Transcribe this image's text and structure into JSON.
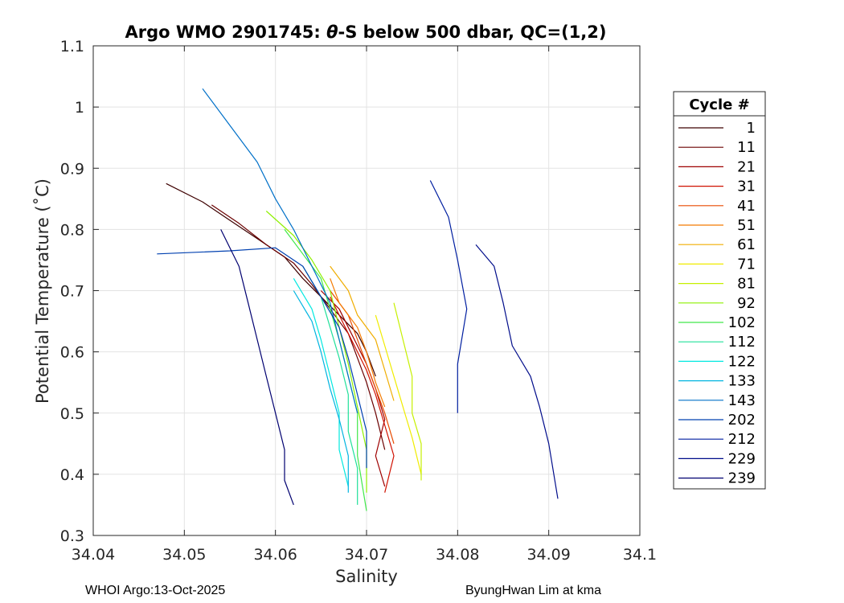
{
  "chart_data": {
    "type": "line",
    "title_parts": {
      "prefix": "Argo WMO 2901745: ",
      "theta": "θ",
      "suffix": "-S below 500 dbar,  QC=(1,2)"
    },
    "xlabel": "Salinity",
    "ylabel": "Potential Temperature (˚C)",
    "xlim": [
      34.04,
      34.1
    ],
    "ylim": [
      0.3,
      1.1
    ],
    "xticks": [
      34.04,
      34.05,
      34.06,
      34.07,
      34.08,
      34.09,
      34.1
    ],
    "xtick_labels": [
      "34.04",
      "34.05",
      "34.06",
      "34.07",
      "34.08",
      "34.09",
      "34.1"
    ],
    "yticks": [
      0.3,
      0.4,
      0.5,
      0.6,
      0.7,
      0.8,
      0.9,
      1.0,
      1.1
    ],
    "ytick_labels": [
      "0.3",
      "0.4",
      "0.5",
      "0.6",
      "0.7",
      "0.8",
      "0.9",
      "1",
      "1.1"
    ],
    "grid": true,
    "legend": {
      "title": "Cycle #",
      "placement": "right, outside",
      "entries": [
        {
          "label": "1",
          "color": "#3d0000"
        },
        {
          "label": "11",
          "color": "#6b0000"
        },
        {
          "label": "21",
          "color": "#9e0000"
        },
        {
          "label": "31",
          "color": "#d01000"
        },
        {
          "label": "41",
          "color": "#e84a00"
        },
        {
          "label": "51",
          "color": "#f47a00"
        },
        {
          "label": "61",
          "color": "#f0ad00"
        },
        {
          "label": "71",
          "color": "#f0ec00"
        },
        {
          "label": "81",
          "color": "#c6f000"
        },
        {
          "label": "92",
          "color": "#8ef000"
        },
        {
          "label": "102",
          "color": "#40e84a"
        },
        {
          "label": "112",
          "color": "#20e09a"
        },
        {
          "label": "122",
          "color": "#00e8e0"
        },
        {
          "label": "133",
          "color": "#00b4e0"
        },
        {
          "label": "143",
          "color": "#0070c8"
        },
        {
          "label": "202",
          "color": "#0040b0"
        },
        {
          "label": "212",
          "color": "#001ea0"
        },
        {
          "label": "229",
          "color": "#000c8a"
        },
        {
          "label": "239",
          "color": "#000070"
        }
      ]
    },
    "series": [
      {
        "cycle": "1",
        "color": "#3d0000",
        "x": [
          34.048,
          34.052,
          34.055,
          34.058,
          34.061,
          34.063,
          34.065,
          34.067,
          34.069,
          34.07,
          34.071
        ],
        "y": [
          0.875,
          0.845,
          0.815,
          0.785,
          0.755,
          0.72,
          0.69,
          0.66,
          0.63,
          0.6,
          0.56
        ]
      },
      {
        "cycle": "11",
        "color": "#6b0000",
        "x": [
          34.053,
          34.056,
          34.059,
          34.062,
          34.064,
          34.066,
          34.068,
          34.069,
          34.07,
          34.071,
          34.072
        ],
        "y": [
          0.84,
          0.81,
          0.775,
          0.745,
          0.71,
          0.67,
          0.63,
          0.59,
          0.55,
          0.5,
          0.44
        ]
      },
      {
        "cycle": "21",
        "color": "#9e0000",
        "x": [
          34.065,
          34.067,
          34.068,
          34.069,
          34.07,
          34.071,
          34.072,
          34.071,
          34.072
        ],
        "y": [
          0.7,
          0.67,
          0.64,
          0.61,
          0.58,
          0.54,
          0.49,
          0.43,
          0.38
        ]
      },
      {
        "cycle": "31",
        "color": "#d01000",
        "x": [
          34.066,
          34.067,
          34.068,
          34.069,
          34.07,
          34.071,
          34.072,
          34.073,
          34.072
        ],
        "y": [
          0.69,
          0.66,
          0.63,
          0.6,
          0.57,
          0.53,
          0.48,
          0.43,
          0.37
        ]
      },
      {
        "cycle": "41",
        "color": "#e84a00",
        "x": [
          34.066,
          34.068,
          34.069,
          34.07,
          34.071,
          34.072,
          34.073
        ],
        "y": [
          0.7,
          0.66,
          0.62,
          0.58,
          0.54,
          0.5,
          0.45
        ]
      },
      {
        "cycle": "51",
        "color": "#f47a00",
        "x": [
          34.066,
          34.067,
          34.069,
          34.07,
          34.071,
          34.072
        ],
        "y": [
          0.72,
          0.68,
          0.64,
          0.6,
          0.55,
          0.51
        ]
      },
      {
        "cycle": "61",
        "color": "#f0ad00",
        "x": [
          34.066,
          34.068,
          34.069,
          34.071,
          34.072,
          34.073
        ],
        "y": [
          0.74,
          0.7,
          0.66,
          0.62,
          0.57,
          0.52
        ]
      },
      {
        "cycle": "71",
        "color": "#f0ec00",
        "x": [
          34.071,
          34.072,
          34.073,
          34.074,
          34.075,
          34.076
        ],
        "y": [
          0.66,
          0.61,
          0.56,
          0.51,
          0.46,
          0.4
        ]
      },
      {
        "cycle": "81",
        "color": "#c6f000",
        "x": [
          34.073,
          34.074,
          34.075,
          34.075,
          34.076,
          34.076
        ],
        "y": [
          0.68,
          0.62,
          0.56,
          0.5,
          0.45,
          0.39
        ]
      },
      {
        "cycle": "92",
        "color": "#8ef000",
        "x": [
          34.059,
          34.062,
          34.064,
          34.066,
          34.067,
          34.068,
          34.069,
          34.07,
          34.07
        ],
        "y": [
          0.83,
          0.79,
          0.75,
          0.7,
          0.64,
          0.58,
          0.51,
          0.44,
          0.37
        ]
      },
      {
        "cycle": "102",
        "color": "#40e84a",
        "x": [
          34.061,
          34.063,
          34.065,
          34.066,
          34.067,
          34.068,
          34.069,
          34.069,
          34.07
        ],
        "y": [
          0.8,
          0.76,
          0.72,
          0.67,
          0.62,
          0.56,
          0.5,
          0.43,
          0.34
        ]
      },
      {
        "cycle": "112",
        "color": "#20e09a",
        "x": [
          34.063,
          34.065,
          34.066,
          34.067,
          34.068,
          34.068,
          34.069,
          34.069
        ],
        "y": [
          0.74,
          0.69,
          0.64,
          0.59,
          0.53,
          0.47,
          0.41,
          0.35
        ]
      },
      {
        "cycle": "122",
        "color": "#00e8e0",
        "x": [
          34.062,
          34.064,
          34.065,
          34.066,
          34.067,
          34.067,
          34.068
        ],
        "y": [
          0.72,
          0.67,
          0.62,
          0.56,
          0.5,
          0.44,
          0.38
        ]
      },
      {
        "cycle": "133",
        "color": "#00b4e0",
        "x": [
          34.062,
          34.064,
          34.065,
          34.066,
          34.067,
          34.068,
          34.068
        ],
        "y": [
          0.7,
          0.65,
          0.6,
          0.54,
          0.49,
          0.43,
          0.37
        ]
      },
      {
        "cycle": "143",
        "color": "#0070c8",
        "x": [
          34.052,
          34.055,
          34.058,
          34.06,
          34.062,
          34.064,
          34.066,
          34.067,
          34.068,
          34.069
        ],
        "y": [
          1.03,
          0.97,
          0.91,
          0.85,
          0.8,
          0.74,
          0.68,
          0.62,
          0.56,
          0.5
        ]
      },
      {
        "cycle": "202",
        "color": "#0040b0",
        "x": [
          34.047,
          34.055,
          34.06,
          34.063,
          34.065,
          34.067,
          34.068,
          34.069,
          34.07,
          34.07
        ],
        "y": [
          0.76,
          0.765,
          0.77,
          0.74,
          0.69,
          0.64,
          0.59,
          0.53,
          0.47,
          0.41
        ]
      },
      {
        "cycle": "212",
        "color": "#001ea0",
        "x": [
          34.077,
          34.079,
          34.08,
          34.081,
          34.08,
          34.08
        ],
        "y": [
          0.88,
          0.82,
          0.75,
          0.67,
          0.58,
          0.5
        ]
      },
      {
        "cycle": "229",
        "color": "#000c8a",
        "x": [
          34.082,
          34.084,
          34.085,
          34.086,
          34.088,
          34.089,
          34.09,
          34.091
        ],
        "y": [
          0.775,
          0.74,
          0.68,
          0.61,
          0.56,
          0.51,
          0.45,
          0.36
        ]
      },
      {
        "cycle": "239",
        "color": "#000070",
        "x": [
          34.054,
          34.056,
          34.057,
          34.058,
          34.059,
          34.06,
          34.061,
          34.061,
          34.062
        ],
        "y": [
          0.8,
          0.74,
          0.68,
          0.62,
          0.56,
          0.5,
          0.44,
          0.39,
          0.35
        ]
      }
    ]
  },
  "footer": {
    "left": "WHOI Argo:13-Oct-2025",
    "right": "ByungHwan Lim at kma"
  }
}
